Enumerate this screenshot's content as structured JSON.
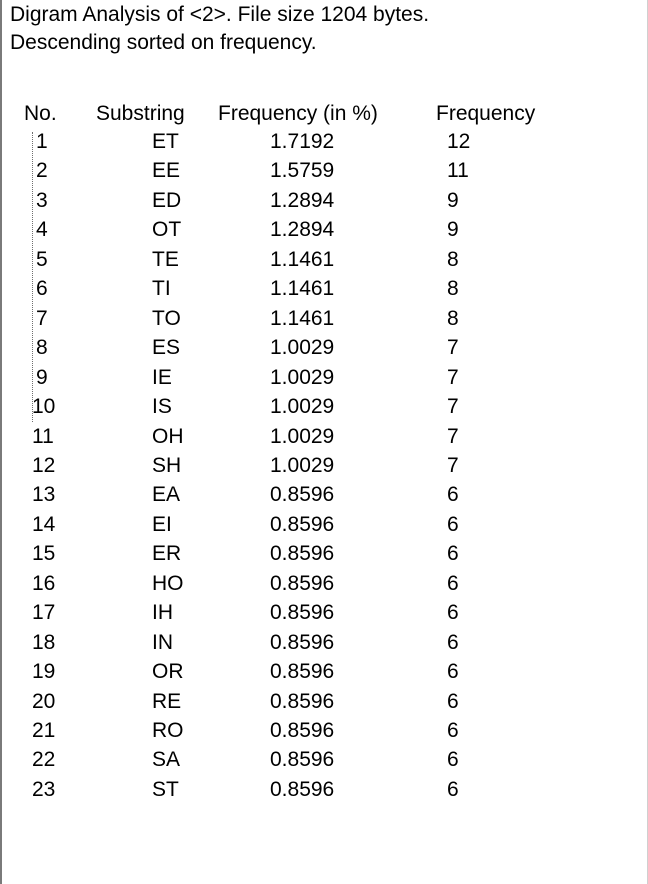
{
  "header": {
    "line1": "Digram Analysis of <2>. File size 1204 bytes.",
    "line2": "Descending sorted on frequency."
  },
  "columns": {
    "no": "No.",
    "substring": "Substring",
    "frequency_pct": "Frequency (in %)",
    "frequency": "Frequency"
  },
  "rows": [
    {
      "no": "1",
      "substring": "ET",
      "pct": "1.7192",
      "freq": "12"
    },
    {
      "no": "2",
      "substring": "EE",
      "pct": "1.5759",
      "freq": "11"
    },
    {
      "no": "3",
      "substring": "ED",
      "pct": "1.2894",
      "freq": "9"
    },
    {
      "no": "4",
      "substring": "OT",
      "pct": "1.2894",
      "freq": "9"
    },
    {
      "no": "5",
      "substring": "TE",
      "pct": "1.1461",
      "freq": "8"
    },
    {
      "no": "6",
      "substring": "TI",
      "pct": "1.1461",
      "freq": "8"
    },
    {
      "no": "7",
      "substring": "TO",
      "pct": "1.1461",
      "freq": "8"
    },
    {
      "no": "8",
      "substring": "ES",
      "pct": "1.0029",
      "freq": "7"
    },
    {
      "no": "9",
      "substring": "IE",
      "pct": "1.0029",
      "freq": "7"
    },
    {
      "no": "10",
      "substring": "IS",
      "pct": "1.0029",
      "freq": "7"
    },
    {
      "no": "11",
      "substring": "OH",
      "pct": "1.0029",
      "freq": "7"
    },
    {
      "no": "12",
      "substring": "SH",
      "pct": "1.0029",
      "freq": "7"
    },
    {
      "no": "13",
      "substring": "EA",
      "pct": "0.8596",
      "freq": "6"
    },
    {
      "no": "14",
      "substring": "EI",
      "pct": "0.8596",
      "freq": "6"
    },
    {
      "no": "15",
      "substring": "ER",
      "pct": "0.8596",
      "freq": "6"
    },
    {
      "no": "16",
      "substring": "HO",
      "pct": "0.8596",
      "freq": "6"
    },
    {
      "no": "17",
      "substring": "IH",
      "pct": "0.8596",
      "freq": "6"
    },
    {
      "no": "18",
      "substring": "IN",
      "pct": "0.8596",
      "freq": "6"
    },
    {
      "no": "19",
      "substring": "OR",
      "pct": "0.8596",
      "freq": "6"
    },
    {
      "no": "20",
      "substring": "RE",
      "pct": "0.8596",
      "freq": "6"
    },
    {
      "no": "21",
      "substring": "RO",
      "pct": "0.8596",
      "freq": "6"
    },
    {
      "no": "22",
      "substring": "SA",
      "pct": "0.8596",
      "freq": "6"
    },
    {
      "no": "23",
      "substring": "ST",
      "pct": "0.8596",
      "freq": "6"
    }
  ]
}
